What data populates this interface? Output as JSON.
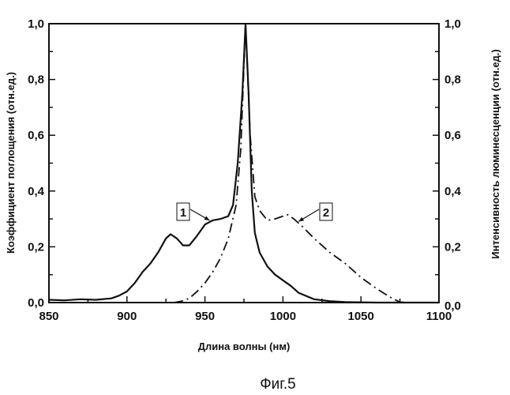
{
  "chart_data": {
    "type": "line",
    "caption": "Фиг.5",
    "xlabel": "Длина волны (нм)",
    "ylabel": "Коэффициент поглощения (отн.ед.)",
    "y2label": "Интенсивность люминесценции (отн.ед.)",
    "xlim": [
      850,
      1100
    ],
    "ylim": [
      0,
      1.0
    ],
    "y2lim": [
      0,
      1.0
    ],
    "xticks": [
      "850",
      "900",
      "950",
      "1000",
      "1050",
      "1100"
    ],
    "xtick_values": [
      850,
      900,
      950,
      1000,
      1050,
      1100
    ],
    "yticks": [
      "0,0",
      "0,2",
      "0,4",
      "0,6",
      "0,8",
      "1,0"
    ],
    "ytick_values": [
      0,
      0.2,
      0.4,
      0.6,
      0.8,
      1.0
    ],
    "grid": false,
    "series": [
      {
        "name": "1",
        "style": "solid",
        "axis": "left",
        "x": [
          850,
          860,
          870,
          880,
          890,
          895,
          900,
          905,
          910,
          915,
          920,
          925,
          928,
          932,
          936,
          940,
          945,
          950,
          955,
          960,
          965,
          968,
          971,
          974,
          976,
          978,
          980,
          982,
          985,
          990,
          995,
          1000,
          1005,
          1010,
          1020,
          1030,
          1040,
          1060,
          1100
        ],
        "y": [
          0.01,
          0.008,
          0.012,
          0.01,
          0.015,
          0.025,
          0.04,
          0.07,
          0.11,
          0.14,
          0.18,
          0.23,
          0.245,
          0.23,
          0.205,
          0.205,
          0.24,
          0.28,
          0.295,
          0.3,
          0.31,
          0.35,
          0.5,
          0.75,
          1.0,
          0.75,
          0.4,
          0.25,
          0.18,
          0.13,
          0.1,
          0.08,
          0.06,
          0.035,
          0.012,
          0.005,
          0.002,
          0.0,
          0.0
        ]
      },
      {
        "name": "2",
        "style": "dashdot",
        "axis": "right",
        "x": [
          930,
          935,
          940,
          945,
          950,
          955,
          960,
          965,
          970,
          973,
          976,
          979,
          982,
          985,
          990,
          995,
          1000,
          1003,
          1007,
          1012,
          1020,
          1030,
          1040,
          1050,
          1060,
          1070,
          1075,
          1080
        ],
        "y": [
          0.0,
          0.005,
          0.015,
          0.04,
          0.07,
          0.11,
          0.16,
          0.23,
          0.35,
          0.55,
          1.0,
          0.6,
          0.38,
          0.33,
          0.295,
          0.3,
          0.31,
          0.315,
          0.3,
          0.275,
          0.23,
          0.18,
          0.14,
          0.09,
          0.05,
          0.015,
          0.002,
          0.0
        ]
      }
    ],
    "annotations": [
      {
        "text": "1",
        "points_to_series": "1",
        "at_x": 953
      },
      {
        "text": "2",
        "points_to_series": "2",
        "at_x": 1010
      }
    ]
  }
}
